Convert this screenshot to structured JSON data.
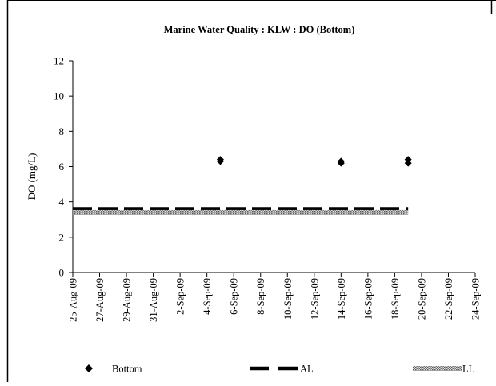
{
  "chart_data": {
    "type": "scatter",
    "title": "Marine Water Quality : KLW : DO (Bottom)",
    "xlabel": "",
    "ylabel": "DO (mg/L)",
    "x_type": "date",
    "xlim": [
      "2009-08-25",
      "2009-09-24"
    ],
    "ylim": [
      0,
      12
    ],
    "y_ticks": [
      0,
      2,
      4,
      6,
      8,
      10,
      12
    ],
    "x_ticks": [
      "25-Aug-09",
      "27-Aug-09",
      "29-Aug-09",
      "31-Aug-09",
      "2-Sep-09",
      "4-Sep-09",
      "6-Sep-09",
      "8-Sep-09",
      "10-Sep-09",
      "12-Sep-09",
      "14-Sep-09",
      "16-Sep-09",
      "18-Sep-09",
      "20-Sep-09",
      "22-Sep-09",
      "24-Sep-09"
    ],
    "grid": false,
    "legend_position": "bottom",
    "series": [
      {
        "name": "Bottom",
        "kind": "scatter",
        "marker": "diamond",
        "color": "#000000",
        "points": [
          {
            "x": "2009-09-05",
            "y": 6.3
          },
          {
            "x": "2009-09-05",
            "y": 6.4
          },
          {
            "x": "2009-09-14",
            "y": 6.2
          },
          {
            "x": "2009-09-14",
            "y": 6.3
          },
          {
            "x": "2009-09-19",
            "y": 6.2
          },
          {
            "x": "2009-09-19",
            "y": 6.4
          }
        ]
      },
      {
        "name": "AL",
        "kind": "line",
        "style": "dashed",
        "color": "#000000",
        "points": [
          {
            "x": "2009-08-25",
            "y": 3.6
          },
          {
            "x": "2009-09-19",
            "y": 3.6
          }
        ]
      },
      {
        "name": "LL",
        "kind": "line",
        "style": "hatched",
        "color": "#9a9a9a",
        "points": [
          {
            "x": "2009-08-25",
            "y": 3.4
          },
          {
            "x": "2009-09-19",
            "y": 3.4
          }
        ]
      }
    ]
  }
}
